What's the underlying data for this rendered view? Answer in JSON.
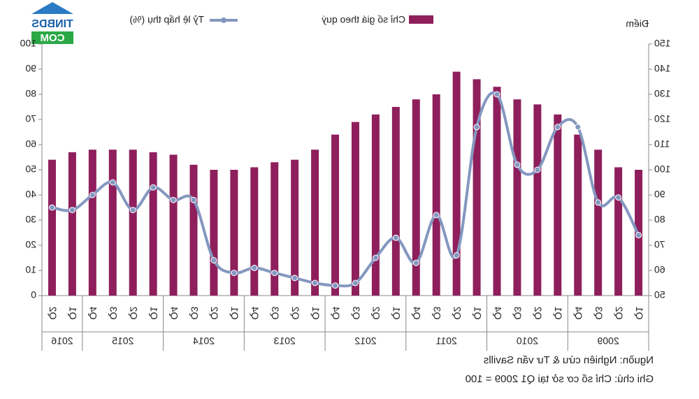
{
  "logo": {
    "top": "TINBDS",
    "bottom": "COM"
  },
  "chart_data": {
    "type": "bar_line",
    "y_label": "Điểm",
    "source": "Nguồn: Nghiên cứu & Tư vấn Savills",
    "note": "Ghi chú: Chỉ số cơ sở tại Q1 2009 = 100",
    "mirrored": true,
    "categories": [
      "Q1",
      "Q2",
      "Q3",
      "Q4",
      "Q1",
      "Q2",
      "Q3",
      "Q4",
      "Q1",
      "Q2",
      "Q3",
      "Q4",
      "Q1",
      "Q2",
      "Q3",
      "Q4",
      "Q1",
      "Q2",
      "Q3",
      "Q4",
      "Q1",
      "Q2",
      "Q3",
      "Q4",
      "Q1",
      "Q2",
      "Q3",
      "Q4",
      "Q1",
      "Q2"
    ],
    "years": [
      "2009",
      "2010",
      "2011",
      "2012",
      "2013",
      "2014",
      "2015",
      "2016"
    ],
    "series": [
      {
        "name": "Chỉ số giá theo quý",
        "type": "bar",
        "color": "#8e1f5c",
        "values": [
          100,
          101,
          108,
          114,
          122,
          126,
          128,
          133,
          136,
          139,
          130,
          128,
          125,
          122,
          119,
          114,
          108,
          104,
          103,
          101,
          100,
          100,
          102,
          106,
          107,
          108,
          108,
          108,
          107,
          104
        ]
      },
      {
        "name": "Tỷ lệ hấp thụ (%)",
        "type": "line",
        "axis": "y2",
        "color": "#8497c0",
        "values": [
          24,
          39,
          37,
          67,
          67,
          50,
          52,
          80,
          67,
          16,
          32,
          13,
          23,
          15,
          5,
          4,
          5,
          7,
          9,
          11,
          9,
          14,
          38,
          38,
          43,
          34,
          45,
          40,
          34,
          35
        ]
      }
    ],
    "ylim": [
      50,
      150
    ],
    "yticks": [
      50,
      60,
      70,
      80,
      90,
      100,
      110,
      120,
      130,
      140,
      150
    ],
    "y2lim": [
      0,
      100
    ],
    "y2ticks": [
      0,
      10,
      20,
      30,
      40,
      50,
      60,
      70,
      80,
      90,
      100
    ]
  }
}
